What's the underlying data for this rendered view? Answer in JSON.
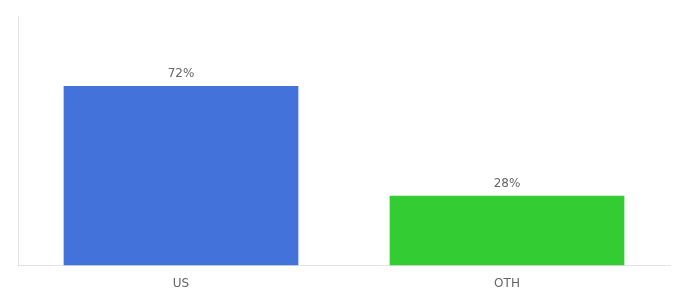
{
  "chart_data": {
    "type": "bar",
    "categories": [
      "US",
      "OTH"
    ],
    "values": [
      72,
      28
    ],
    "value_labels": [
      "72%",
      "28%"
    ],
    "colors": [
      "#4472db",
      "#33cc33"
    ],
    "ylim": [
      0,
      100
    ],
    "grid": false,
    "data_labels": true,
    "tick_labels": "x"
  }
}
